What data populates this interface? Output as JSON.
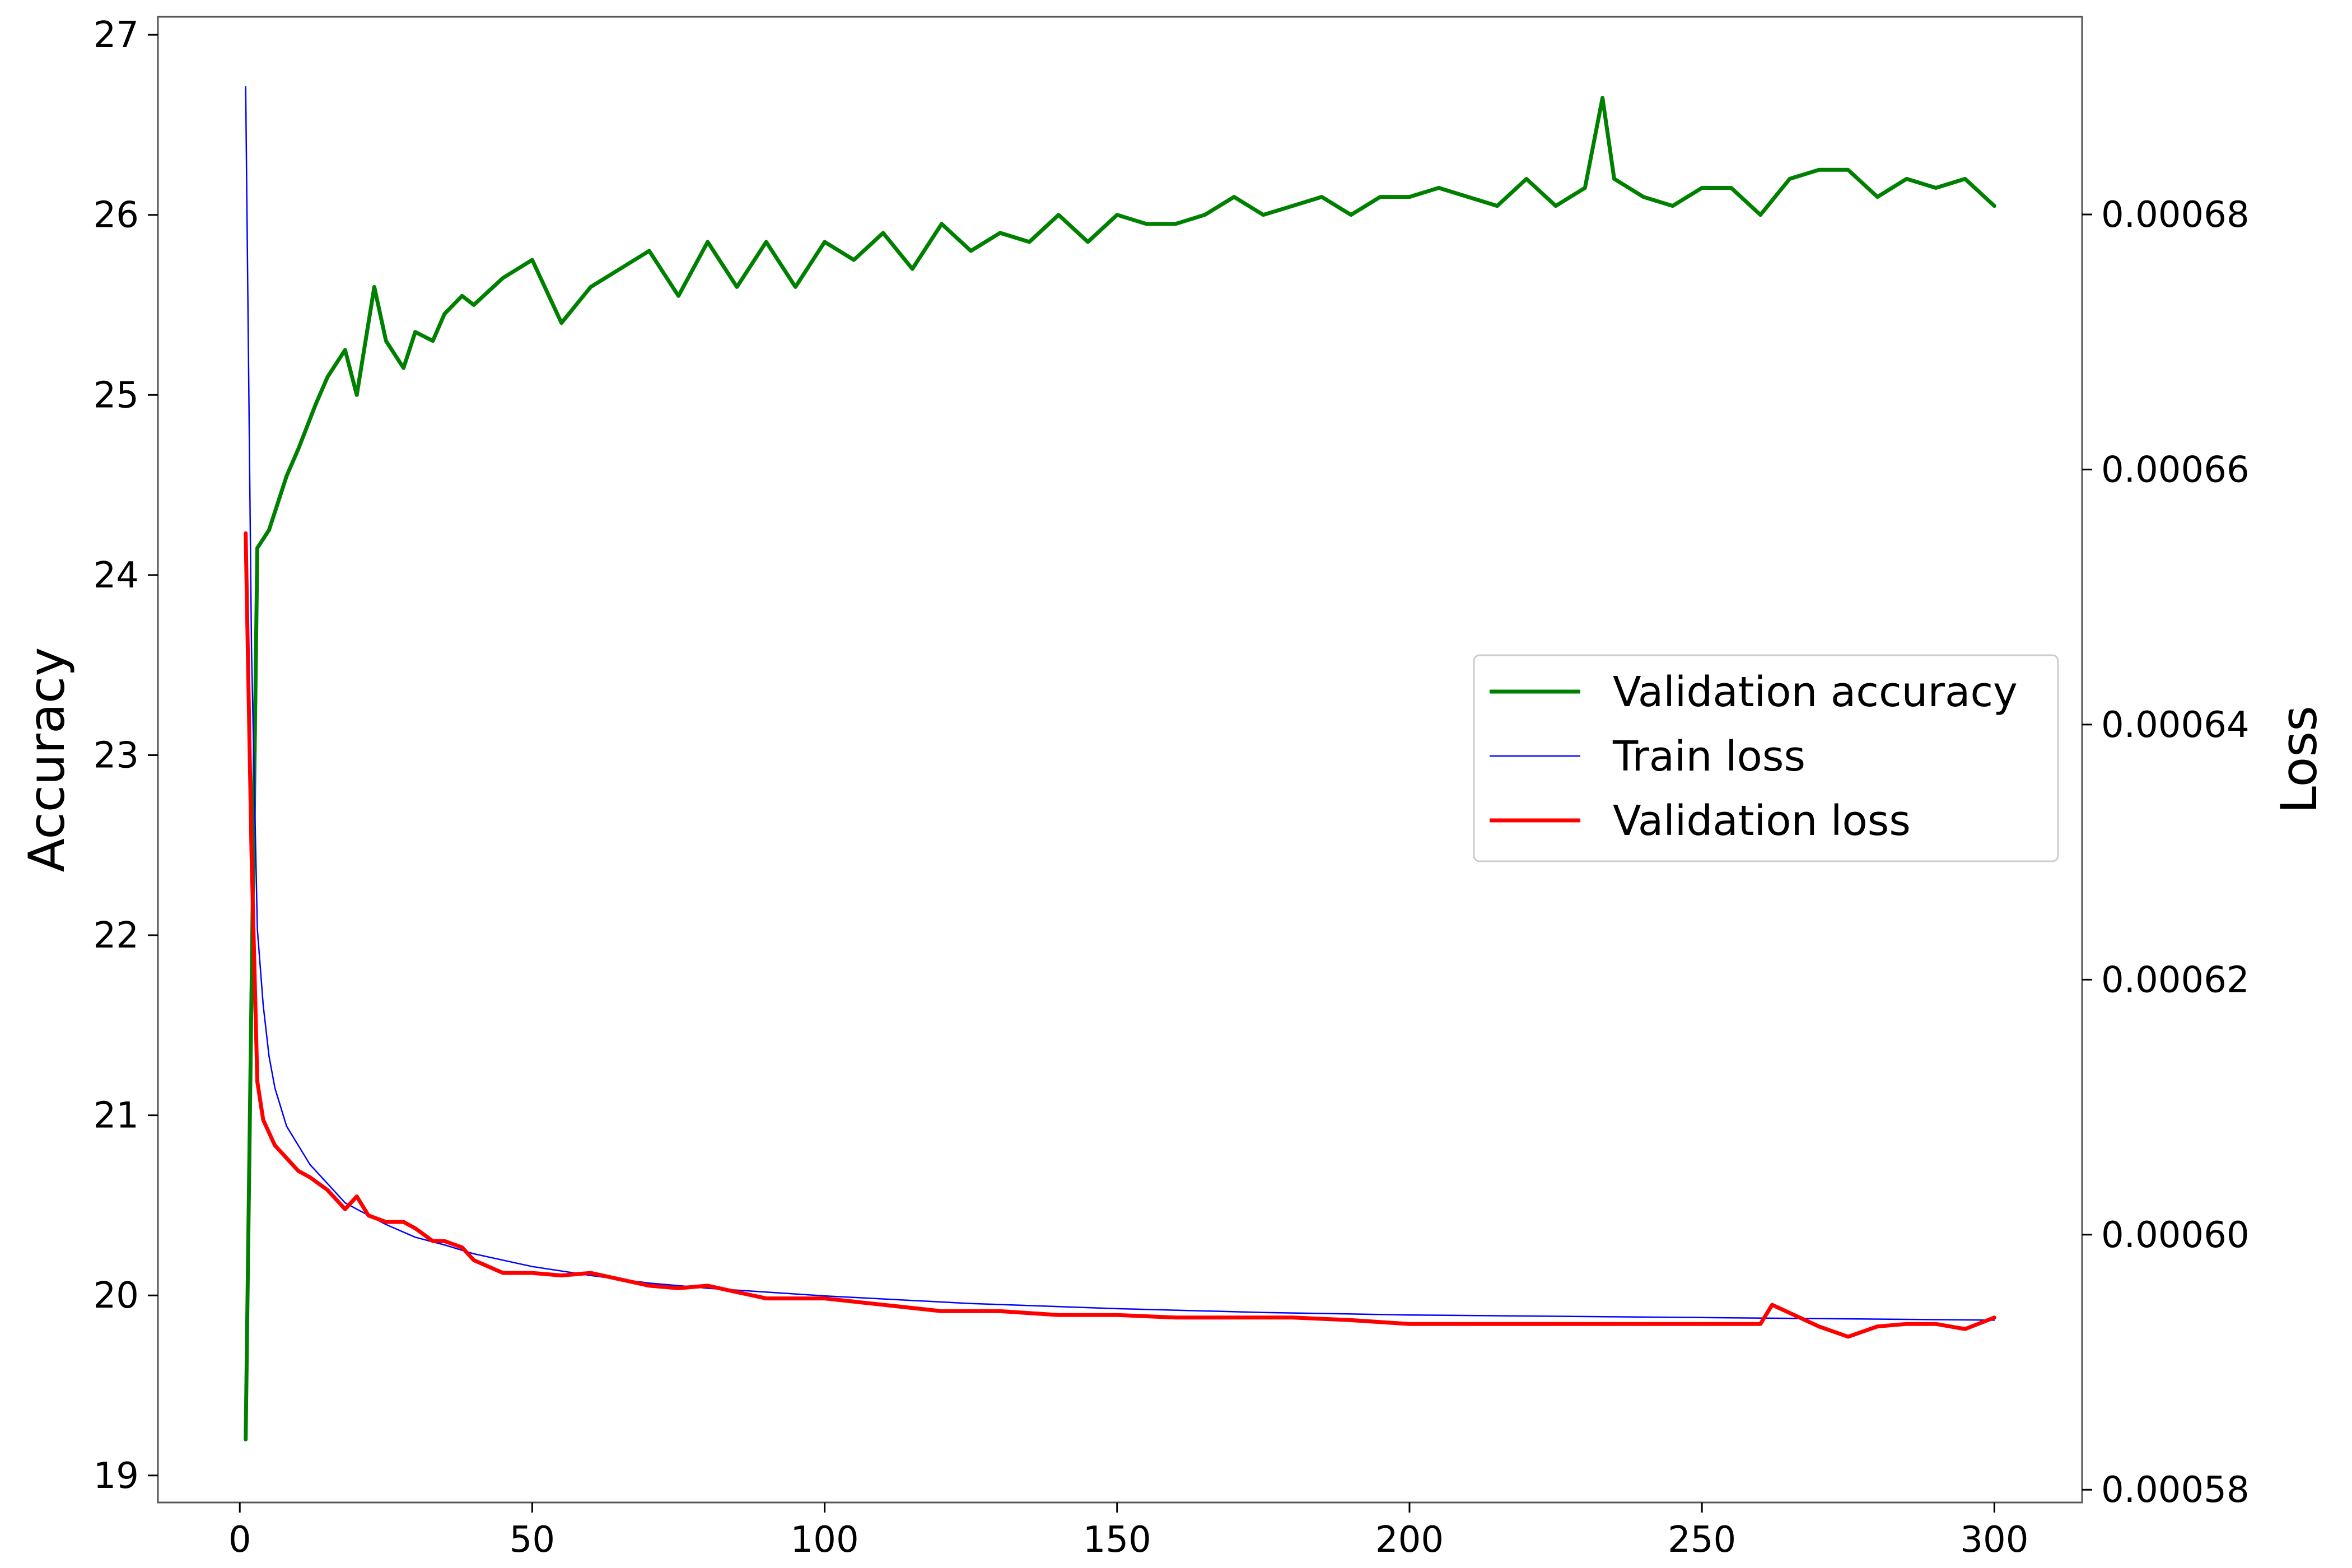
{
  "chart_data": {
    "type": "line",
    "title": "",
    "xlabel": "",
    "ylabel_left": "Accuracy",
    "ylabel_right": "Loss",
    "xlim": [
      -14,
      315
    ],
    "ylim_left": [
      18.85,
      27.1
    ],
    "ylim_right": [
      0.000579,
      0.0006955
    ],
    "x_ticks": [
      0,
      50,
      100,
      150,
      200,
      250,
      300
    ],
    "y_left_ticks": [
      19,
      20,
      21,
      22,
      23,
      24,
      25,
      26,
      27
    ],
    "y_right_ticks": [
      0.00058,
      0.0006,
      0.00062,
      0.00064,
      0.00066,
      0.00068
    ],
    "y_right_tick_labels": [
      "0.00058",
      "0.00060",
      "0.00062",
      "0.00064",
      "0.00066",
      "0.00068"
    ],
    "grid": false,
    "legend_position": "center-right",
    "series": [
      {
        "name": "Validation accuracy",
        "axis": "left",
        "color": "#008000",
        "x": [
          1,
          3,
          5,
          8,
          10,
          13,
          15,
          18,
          20,
          23,
          25,
          28,
          30,
          33,
          35,
          38,
          40,
          45,
          50,
          55,
          60,
          65,
          70,
          75,
          80,
          85,
          90,
          95,
          100,
          105,
          110,
          115,
          120,
          125,
          130,
          135,
          140,
          145,
          150,
          155,
          160,
          165,
          170,
          175,
          180,
          185,
          190,
          195,
          200,
          205,
          210,
          215,
          220,
          225,
          230,
          233,
          235,
          240,
          245,
          250,
          255,
          260,
          265,
          270,
          275,
          280,
          285,
          290,
          295,
          300
        ],
        "values": [
          19.2,
          24.15,
          24.25,
          24.55,
          24.7,
          24.95,
          25.1,
          25.25,
          25.0,
          25.6,
          25.3,
          25.15,
          25.35,
          25.3,
          25.45,
          25.55,
          25.5,
          25.65,
          25.75,
          25.4,
          25.6,
          25.7,
          25.8,
          25.55,
          25.85,
          25.6,
          25.85,
          25.6,
          25.85,
          25.75,
          25.9,
          25.7,
          25.95,
          25.8,
          25.9,
          25.85,
          26.0,
          25.85,
          26.0,
          25.95,
          25.95,
          26.0,
          26.1,
          26.0,
          26.05,
          26.1,
          26.0,
          26.1,
          26.1,
          26.15,
          26.1,
          26.05,
          26.2,
          26.05,
          26.15,
          26.65,
          26.2,
          26.1,
          26.05,
          26.15,
          26.15,
          26.0,
          26.2,
          26.25,
          26.25,
          26.1,
          26.2,
          26.15,
          26.2,
          26.05
        ]
      },
      {
        "name": "Train loss",
        "axis": "right",
        "color": "#0000ff",
        "x": [
          1,
          2,
          3,
          4,
          5,
          6,
          8,
          10,
          12,
          15,
          18,
          20,
          25,
          30,
          35,
          40,
          45,
          50,
          60,
          70,
          80,
          90,
          100,
          125,
          150,
          175,
          200,
          225,
          250,
          275,
          300
        ],
        "values": [
          0.00069,
          0.000646,
          0.000624,
          0.000618,
          0.000614,
          0.0006115,
          0.0006085,
          0.000607,
          0.0006055,
          0.000604,
          0.0006025,
          0.000602,
          0.0006008,
          0.0005998,
          0.0005992,
          0.0005985,
          0.000598,
          0.0005975,
          0.0005968,
          0.0005962,
          0.0005958,
          0.0005955,
          0.0005952,
          0.0005946,
          0.0005942,
          0.0005939,
          0.0005937,
          0.0005936,
          0.0005935,
          0.0005934,
          0.0005933
        ]
      },
      {
        "name": "Validation loss",
        "axis": "right",
        "color": "#ff0000",
        "x": [
          1,
          2,
          3,
          4,
          5,
          6,
          8,
          10,
          12,
          15,
          18,
          20,
          22,
          25,
          28,
          30,
          33,
          35,
          38,
          40,
          45,
          50,
          55,
          60,
          65,
          70,
          75,
          80,
          85,
          90,
          95,
          100,
          110,
          120,
          130,
          140,
          150,
          160,
          170,
          180,
          190,
          200,
          210,
          220,
          230,
          240,
          250,
          260,
          262,
          270,
          275,
          280,
          285,
          290,
          295,
          300
        ],
        "values": [
          0.000655,
          0.00063,
          0.000612,
          0.000609,
          0.000608,
          0.000607,
          0.000606,
          0.000605,
          0.0006045,
          0.0006035,
          0.000602,
          0.000603,
          0.0006015,
          0.000601,
          0.000601,
          0.0006005,
          0.0005995,
          0.0005995,
          0.000599,
          0.000598,
          0.000597,
          0.000597,
          0.0005968,
          0.000597,
          0.0005965,
          0.000596,
          0.0005958,
          0.000596,
          0.0005955,
          0.000595,
          0.000595,
          0.000595,
          0.0005945,
          0.000594,
          0.000594,
          0.0005937,
          0.0005937,
          0.0005935,
          0.0005935,
          0.0005935,
          0.0005933,
          0.000593,
          0.000593,
          0.000593,
          0.000593,
          0.000593,
          0.000593,
          0.000593,
          0.0005945,
          0.0005928,
          0.000592,
          0.0005928,
          0.000593,
          0.000593,
          0.0005926,
          0.0005935
        ]
      }
    ]
  }
}
